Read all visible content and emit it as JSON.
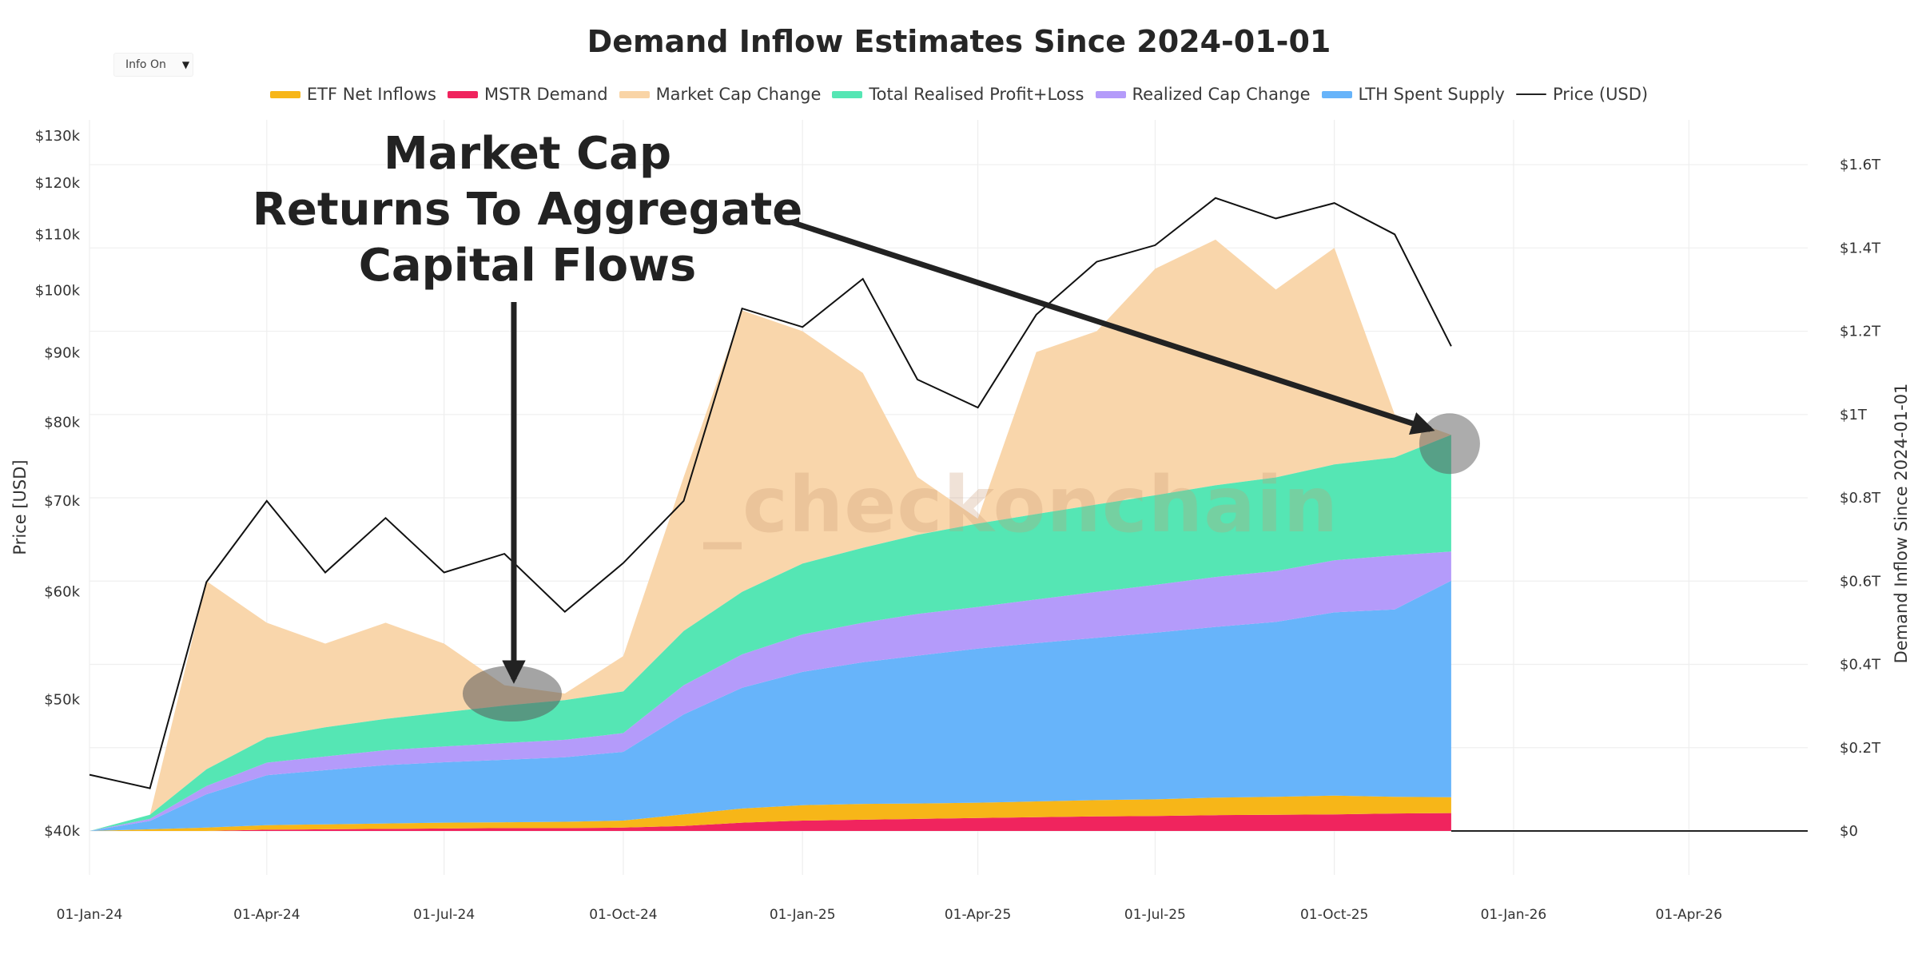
{
  "header": {
    "title": "Demand Inflow Estimates Since 2024-01-01",
    "info_button_label": "Info On",
    "info_caret": "▼"
  },
  "legend": [
    {
      "label": "ETF Net Inflows",
      "color": "#F7B618"
    },
    {
      "label": "MSTR Demand",
      "color": "#F0245E"
    },
    {
      "label": "Market Cap Change",
      "color": "#F9D4A6"
    },
    {
      "label": "Total Realised Profit+Loss",
      "color": "#55E6B4"
    },
    {
      "label": "Realized Cap Change",
      "color": "#B49BFA"
    },
    {
      "label": "LTH Spent Supply",
      "color": "#67B4FA"
    },
    {
      "label": "Price (USD)",
      "color": "#222222"
    }
  ],
  "annotation": {
    "lines": [
      "Market Cap",
      "Returns To Aggregate",
      "Capital Flows"
    ]
  },
  "watermark": "_checkonchain",
  "chart_data": {
    "type": "area",
    "title": "Demand Inflow Estimates Since 2024-01-01",
    "xlabel": "",
    "ylabel_left": "Price [USD]",
    "ylabel_right": "Demand Inflow Since 2024-01-01",
    "y_left_scale": "log",
    "y_left_range": [
      40000,
      130000
    ],
    "y_right_range": [
      0,
      1.65
    ],
    "y_right_unit": "trillion USD",
    "x_range": [
      "2024-01-01",
      "2026-06-01"
    ],
    "x_ticks": [
      "01-Jan-24",
      "01-Apr-24",
      "01-Jul-24",
      "01-Oct-24",
      "01-Jan-25",
      "01-Apr-25",
      "01-Jul-25",
      "01-Oct-25",
      "01-Jan-26",
      "01-Apr-26"
    ],
    "y_left_ticks": [
      "$40k",
      "$50k",
      "$60k",
      "$70k",
      "$80k",
      "$90k",
      "$100k",
      "$110k",
      "$120k",
      "$130k"
    ],
    "y_right_ticks": [
      "$0",
      "$0.2T",
      "$0.4T",
      "$0.6T",
      "$0.8T",
      "$1T",
      "$1.2T",
      "$1.4T",
      "$1.6T"
    ],
    "grid": true,
    "legend_position": "top-center",
    "stacked": true,
    "dates": [
      "2024-01-01",
      "2024-02-01",
      "2024-03-01",
      "2024-04-01",
      "2024-05-01",
      "2024-06-01",
      "2024-07-01",
      "2024-08-01",
      "2024-09-01",
      "2024-10-01",
      "2024-11-01",
      "2024-12-01",
      "2025-01-01",
      "2025-02-01",
      "2025-03-01",
      "2025-04-01",
      "2025-05-01",
      "2025-06-01",
      "2025-07-01",
      "2025-08-01",
      "2025-09-01",
      "2025-10-01",
      "2025-11-01",
      "2025-11-30"
    ],
    "series": [
      {
        "name": "MSTR Demand",
        "values": [
          0,
          0,
          0,
          0.003,
          0.004,
          0.005,
          0.006,
          0.007,
          0.007,
          0.008,
          0.012,
          0.02,
          0.025,
          0.027,
          0.029,
          0.031,
          0.033,
          0.035,
          0.036,
          0.038,
          0.039,
          0.04,
          0.042,
          0.043
        ]
      },
      {
        "name": "ETF Net Inflows",
        "values": [
          0,
          0.004,
          0.008,
          0.011,
          0.012,
          0.013,
          0.014,
          0.014,
          0.015,
          0.017,
          0.028,
          0.034,
          0.037,
          0.038,
          0.037,
          0.037,
          0.038,
          0.039,
          0.04,
          0.042,
          0.043,
          0.045,
          0.04,
          0.038
        ]
      },
      {
        "name": "LTH Spent Supply",
        "values": [
          0,
          0.02,
          0.08,
          0.12,
          0.13,
          0.14,
          0.145,
          0.15,
          0.155,
          0.165,
          0.24,
          0.29,
          0.32,
          0.34,
          0.355,
          0.37,
          0.38,
          0.39,
          0.4,
          0.41,
          0.42,
          0.44,
          0.45,
          0.52
        ]
      },
      {
        "name": "Realized Cap Change",
        "values": [
          0,
          0.005,
          0.02,
          0.03,
          0.033,
          0.036,
          0.038,
          0.04,
          0.042,
          0.045,
          0.07,
          0.08,
          0.09,
          0.095,
          0.1,
          0.1,
          0.105,
          0.11,
          0.115,
          0.12,
          0.122,
          0.125,
          0.13,
          0.07
        ]
      },
      {
        "name": "Total Realised Profit+Loss",
        "values": [
          0,
          0.01,
          0.04,
          0.06,
          0.07,
          0.075,
          0.082,
          0.09,
          0.095,
          0.1,
          0.13,
          0.15,
          0.17,
          0.18,
          0.19,
          0.2,
          0.205,
          0.21,
          0.215,
          0.22,
          0.225,
          0.23,
          0.235,
          0.28
        ]
      }
    ],
    "market_cap_change": {
      "name": "Market Cap Change",
      "values": [
        0,
        0.01,
        0.6,
        0.5,
        0.45,
        0.5,
        0.45,
        0.35,
        0.33,
        0.42,
        0.85,
        1.25,
        1.2,
        1.1,
        0.85,
        0.75,
        1.15,
        1.2,
        1.35,
        1.42,
        1.3,
        1.4,
        1.0,
        0.88
      ]
    },
    "price": {
      "name": "Price (USD)",
      "values": [
        44000,
        43000,
        61000,
        70000,
        62000,
        68000,
        62000,
        64000,
        58000,
        63000,
        70000,
        97000,
        94000,
        102000,
        86000,
        82000,
        96000,
        105000,
        108000,
        117000,
        113000,
        116000,
        110000,
        91000
      ]
    }
  },
  "callouts": [
    {
      "label": "Market Cap Returns To Aggregate Capital Flows (2024-08)",
      "date": "2024-08-05",
      "value_t": 0.33
    },
    {
      "label": "Market Cap Returns To Aggregate Capital Flows (2025-11)",
      "date": "2025-11-30",
      "value_t": 0.93
    }
  ]
}
